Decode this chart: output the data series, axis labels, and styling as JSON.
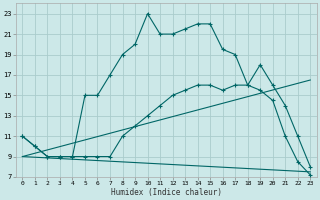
{
  "xlabel": "Humidex (Indice chaleur)",
  "bg_color": "#cce8e8",
  "grid_color": "#aacccc",
  "line_color": "#006666",
  "xlim": [
    -0.5,
    23.5
  ],
  "ylim": [
    7,
    24
  ],
  "xticks": [
    0,
    1,
    2,
    3,
    4,
    5,
    6,
    7,
    8,
    9,
    10,
    11,
    12,
    13,
    14,
    15,
    16,
    17,
    18,
    19,
    20,
    21,
    22,
    23
  ],
  "yticks": [
    7,
    9,
    11,
    13,
    15,
    17,
    19,
    21,
    23
  ],
  "line1_x": [
    0,
    1,
    2,
    3,
    4,
    5,
    6,
    7,
    8,
    9,
    10,
    11,
    12,
    13,
    14,
    15,
    16,
    17,
    18,
    19,
    20,
    21,
    22,
    23
  ],
  "line1_y": [
    11,
    10,
    9,
    9,
    9,
    15,
    15,
    17,
    19,
    20,
    23,
    21,
    21,
    21.5,
    22,
    22,
    19.5,
    19,
    16,
    18,
    16,
    14,
    11,
    8
  ],
  "line2_x": [
    0,
    1,
    2,
    3,
    4,
    5,
    6,
    7,
    8,
    9,
    10,
    11,
    12,
    13,
    14,
    15,
    16,
    17,
    18,
    19,
    20,
    21,
    22,
    23
  ],
  "line2_y": [
    11,
    10,
    9,
    9,
    9,
    9,
    9,
    9,
    11,
    12,
    13,
    14,
    15,
    15.5,
    16,
    16,
    15.5,
    16,
    16,
    15.5,
    14.5,
    11,
    8.5,
    7.2
  ],
  "line3_x": [
    0,
    23
  ],
  "line3_y": [
    9,
    16.5
  ],
  "line4_x": [
    0,
    23
  ],
  "line4_y": [
    9,
    7.5
  ]
}
